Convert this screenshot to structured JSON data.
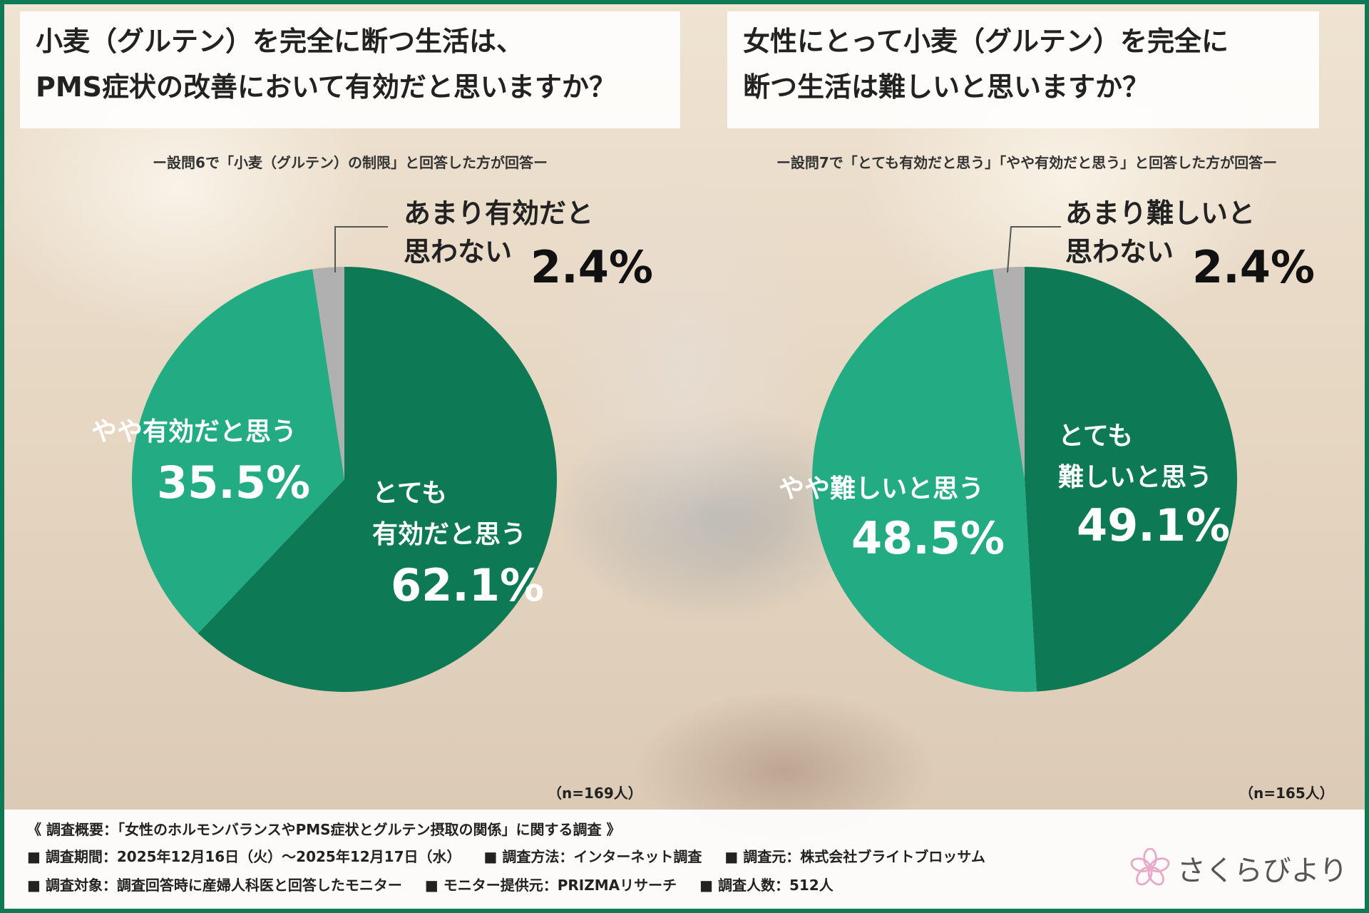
{
  "chart_data": [
    {
      "type": "pie",
      "title_line1": "小麦（グルテン）を完全に断つ生活は、",
      "title_line2": "PMS症状の改善において有効だと思いますか？",
      "subtitle": "ー設問6で「小麦（グルテン）の制限」と回答した方が回答ー",
      "slices": [
        {
          "label_line1": "とても",
          "label_line2": "有効だと思う",
          "value": 62.1,
          "value_text": "62.1%",
          "color": "#0e7a55"
        },
        {
          "label_line1": "やや有効だと思う",
          "label_line2": "",
          "value": 35.5,
          "value_text": "35.5%",
          "color": "#23ab84"
        },
        {
          "label_line1": "あまり有効だと",
          "label_line2": "思わない",
          "value": 2.4,
          "value_text": "2.4%",
          "color": "#b0b0b0"
        }
      ],
      "n": "（n=169人）"
    },
    {
      "type": "pie",
      "title_line1": "女性にとって小麦（グルテン）を完全に",
      "title_line2": "断つ生活は難しいと思いますか？",
      "subtitle": "ー設問7で「とても有効だと思う」「やや有効だと思う」と回答した方が回答ー",
      "slices": [
        {
          "label_line1": "とても",
          "label_line2": "難しいと思う",
          "value": 49.1,
          "value_text": "49.1%",
          "color": "#0e7a55"
        },
        {
          "label_line1": "やや難しいと思う",
          "label_line2": "",
          "value": 48.5,
          "value_text": "48.5%",
          "color": "#23ab84"
        },
        {
          "label_line1": "あまり難しいと",
          "label_line2": "思わない",
          "value": 2.4,
          "value_text": "2.4%",
          "color": "#b0b0b0"
        }
      ],
      "n": "（n=165人）"
    }
  ],
  "footer": {
    "heading": "《 調査概要：「女性のホルモンバランスやPMS症状とグルテン摂取の関係」に関する調査 》",
    "period": "■ 調査期間：2025年12月16日（火）～2025年12月17日（水）",
    "method": "■ 調査方法：インターネット調査",
    "source": "■ 調査元：株式会社ブライトブロッサム",
    "target": "■ 調査対象：調査回答時に産婦人科医と回答したモニター",
    "provider": "■ モニター提供元：PRIZMAリサーチ",
    "count": "■ 調査人数：512人"
  },
  "logo": {
    "text": "さくらびより",
    "icon": "sakura-flower-icon",
    "color": "#e8a8c8"
  }
}
